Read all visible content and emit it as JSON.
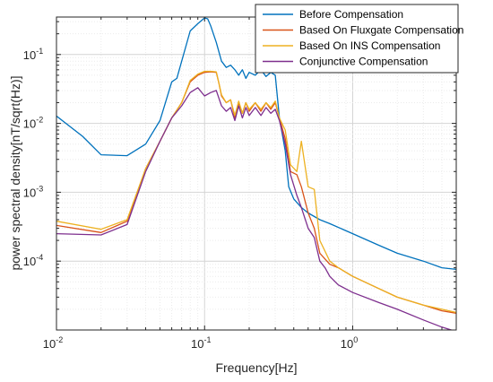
{
  "chart_data": {
    "type": "line",
    "title": "",
    "xlabel": "Frequency[Hz]",
    "ylabel": "power spectral density[nT/sqrt(Hz)]",
    "xscale": "log",
    "yscale": "log",
    "xlim": [
      0.01,
      5
    ],
    "ylim": [
      1e-05,
      0.35
    ],
    "grid": true,
    "legend_position": "top-right",
    "x_ticks": [
      {
        "value": 0.01,
        "base": "10",
        "exp": "-2"
      },
      {
        "value": 0.1,
        "base": "10",
        "exp": "-1"
      },
      {
        "value": 1,
        "base": "10",
        "exp": "0"
      }
    ],
    "y_ticks": [
      {
        "value": 0.0001,
        "base": "10",
        "exp": "-4"
      },
      {
        "value": 0.001,
        "base": "10",
        "exp": "-3"
      },
      {
        "value": 0.01,
        "base": "10",
        "exp": "-2"
      },
      {
        "value": 0.1,
        "base": "10",
        "exp": "-1"
      }
    ],
    "series": [
      {
        "name": "Before Compensation",
        "color": "#0072BD",
        "points": [
          [
            0.01,
            0.0128
          ],
          [
            0.015,
            0.0065
          ],
          [
            0.02,
            0.0035
          ],
          [
            0.03,
            0.0034
          ],
          [
            0.04,
            0.005
          ],
          [
            0.05,
            0.011
          ],
          [
            0.06,
            0.04
          ],
          [
            0.065,
            0.045
          ],
          [
            0.07,
            0.08
          ],
          [
            0.08,
            0.22
          ],
          [
            0.09,
            0.28
          ],
          [
            0.1,
            0.34
          ],
          [
            0.105,
            0.33
          ],
          [
            0.11,
            0.26
          ],
          [
            0.12,
            0.15
          ],
          [
            0.13,
            0.08
          ],
          [
            0.14,
            0.065
          ],
          [
            0.15,
            0.07
          ],
          [
            0.16,
            0.06
          ],
          [
            0.17,
            0.05
          ],
          [
            0.18,
            0.06
          ],
          [
            0.19,
            0.045
          ],
          [
            0.2,
            0.055
          ],
          [
            0.22,
            0.05
          ],
          [
            0.24,
            0.06
          ],
          [
            0.26,
            0.048
          ],
          [
            0.28,
            0.055
          ],
          [
            0.3,
            0.05
          ],
          [
            0.32,
            0.012
          ],
          [
            0.35,
            0.004
          ],
          [
            0.37,
            0.0012
          ],
          [
            0.4,
            0.0008
          ],
          [
            0.45,
            0.0006
          ],
          [
            0.5,
            0.0005
          ],
          [
            0.6,
            0.0004
          ],
          [
            0.7,
            0.00035
          ],
          [
            1.0,
            0.00025
          ],
          [
            1.5,
            0.00017
          ],
          [
            2.0,
            0.00013
          ],
          [
            3.0,
            0.0001
          ],
          [
            4.0,
            8e-05
          ],
          [
            5.0,
            7.6e-05
          ]
        ]
      },
      {
        "name": "Based On Fluxgate Compensation",
        "color": "#D95319",
        "points": [
          [
            0.01,
            0.00033
          ],
          [
            0.02,
            0.00026
          ],
          [
            0.03,
            0.00038
          ],
          [
            0.04,
            0.0022
          ],
          [
            0.05,
            0.0055
          ],
          [
            0.06,
            0.012
          ],
          [
            0.07,
            0.02
          ],
          [
            0.08,
            0.04
          ],
          [
            0.09,
            0.05
          ],
          [
            0.1,
            0.055
          ],
          [
            0.11,
            0.056
          ],
          [
            0.12,
            0.055
          ],
          [
            0.125,
            0.038
          ],
          [
            0.13,
            0.025
          ],
          [
            0.14,
            0.02
          ],
          [
            0.15,
            0.022
          ],
          [
            0.16,
            0.012
          ],
          [
            0.17,
            0.02
          ],
          [
            0.18,
            0.014
          ],
          [
            0.19,
            0.02
          ],
          [
            0.2,
            0.015
          ],
          [
            0.22,
            0.02
          ],
          [
            0.24,
            0.015
          ],
          [
            0.26,
            0.02
          ],
          [
            0.28,
            0.016
          ],
          [
            0.3,
            0.02
          ],
          [
            0.32,
            0.012
          ],
          [
            0.35,
            0.006
          ],
          [
            0.38,
            0.002
          ],
          [
            0.42,
            0.0018
          ],
          [
            0.45,
            0.0012
          ],
          [
            0.5,
            0.0005
          ],
          [
            0.55,
            0.0003
          ],
          [
            0.6,
            0.00013
          ],
          [
            0.7,
            9e-05
          ],
          [
            0.8,
            8e-05
          ],
          [
            1.0,
            6e-05
          ],
          [
            1.5,
            4e-05
          ],
          [
            2.0,
            3e-05
          ],
          [
            3.0,
            2.3e-05
          ],
          [
            4.0,
            1.9e-05
          ],
          [
            5.0,
            1.75e-05
          ]
        ]
      },
      {
        "name": "Based On INS Compensation",
        "color": "#EDB120",
        "points": [
          [
            0.01,
            0.00038
          ],
          [
            0.02,
            0.00029
          ],
          [
            0.03,
            0.0004
          ],
          [
            0.04,
            0.0022
          ],
          [
            0.05,
            0.0055
          ],
          [
            0.06,
            0.012
          ],
          [
            0.07,
            0.02
          ],
          [
            0.08,
            0.042
          ],
          [
            0.09,
            0.052
          ],
          [
            0.1,
            0.057
          ],
          [
            0.11,
            0.057
          ],
          [
            0.12,
            0.056
          ],
          [
            0.125,
            0.038
          ],
          [
            0.13,
            0.026
          ],
          [
            0.14,
            0.02
          ],
          [
            0.15,
            0.022
          ],
          [
            0.16,
            0.013
          ],
          [
            0.17,
            0.021
          ],
          [
            0.18,
            0.014
          ],
          [
            0.19,
            0.02
          ],
          [
            0.2,
            0.016
          ],
          [
            0.22,
            0.02
          ],
          [
            0.24,
            0.016
          ],
          [
            0.26,
            0.02
          ],
          [
            0.28,
            0.017
          ],
          [
            0.3,
            0.021
          ],
          [
            0.32,
            0.012
          ],
          [
            0.35,
            0.008
          ],
          [
            0.38,
            0.0025
          ],
          [
            0.42,
            0.002
          ],
          [
            0.45,
            0.0055
          ],
          [
            0.5,
            0.0012
          ],
          [
            0.55,
            0.0011
          ],
          [
            0.6,
            0.0002
          ],
          [
            0.7,
            0.0001
          ],
          [
            0.8,
            8e-05
          ],
          [
            1.0,
            6e-05
          ],
          [
            1.5,
            4e-05
          ],
          [
            2.0,
            3e-05
          ],
          [
            3.0,
            2.3e-05
          ],
          [
            4.0,
            2e-05
          ],
          [
            5.0,
            1.8e-05
          ]
        ]
      },
      {
        "name": "Conjunctive Compensation",
        "color": "#7E2F8E",
        "points": [
          [
            0.01,
            0.00025
          ],
          [
            0.02,
            0.00024
          ],
          [
            0.03,
            0.00034
          ],
          [
            0.04,
            0.002
          ],
          [
            0.05,
            0.0055
          ],
          [
            0.06,
            0.012
          ],
          [
            0.07,
            0.018
          ],
          [
            0.08,
            0.028
          ],
          [
            0.09,
            0.033
          ],
          [
            0.1,
            0.025
          ],
          [
            0.11,
            0.028
          ],
          [
            0.12,
            0.03
          ],
          [
            0.125,
            0.023
          ],
          [
            0.13,
            0.018
          ],
          [
            0.14,
            0.015
          ],
          [
            0.15,
            0.017
          ],
          [
            0.16,
            0.011
          ],
          [
            0.17,
            0.018
          ],
          [
            0.18,
            0.012
          ],
          [
            0.19,
            0.017
          ],
          [
            0.2,
            0.013
          ],
          [
            0.22,
            0.017
          ],
          [
            0.24,
            0.013
          ],
          [
            0.26,
            0.017
          ],
          [
            0.28,
            0.014
          ],
          [
            0.3,
            0.016
          ],
          [
            0.32,
            0.011
          ],
          [
            0.35,
            0.005
          ],
          [
            0.38,
            0.0018
          ],
          [
            0.42,
            0.0009
          ],
          [
            0.45,
            0.0006
          ],
          [
            0.5,
            0.0003
          ],
          [
            0.55,
            0.00022
          ],
          [
            0.6,
            0.0001
          ],
          [
            0.65,
            8e-05
          ],
          [
            0.7,
            6e-05
          ],
          [
            0.8,
            4.5e-05
          ],
          [
            1.0,
            3.5e-05
          ],
          [
            1.5,
            2.5e-05
          ],
          [
            2.0,
            2e-05
          ],
          [
            3.0,
            1.4e-05
          ],
          [
            4.0,
            1.1e-05
          ],
          [
            5.0,
            9.5e-06
          ]
        ]
      }
    ]
  }
}
